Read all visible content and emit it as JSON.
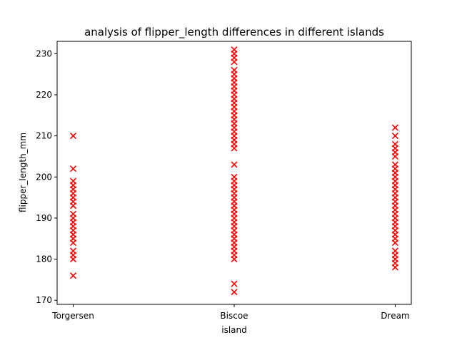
{
  "chart_data": {
    "type": "scatter",
    "title": "analysis of flipper_length differences in different islands",
    "xlabel": "island",
    "ylabel": "flipper_length_mm",
    "categories": [
      "Torgersen",
      "Biscoe",
      "Dream"
    ],
    "ylim": [
      169,
      233
    ],
    "yticks": [
      170,
      180,
      190,
      200,
      210,
      220,
      230
    ],
    "grid": false,
    "marker": "x",
    "marker_color": "#ff0000",
    "series": [
      {
        "values": {
          "Torgersen": [
            176,
            180,
            181,
            182,
            184,
            185,
            186,
            187,
            188,
            189,
            190,
            191,
            193,
            194,
            195,
            196,
            197,
            198,
            199,
            202,
            210
          ],
          "Biscoe": [
            172,
            174,
            180,
            181,
            182,
            183,
            184,
            185,
            186,
            187,
            188,
            189,
            190,
            191,
            192,
            193,
            194,
            195,
            196,
            197,
            198,
            199,
            200,
            203,
            207,
            208,
            209,
            210,
            211,
            212,
            213,
            214,
            215,
            216,
            217,
            218,
            219,
            220,
            221,
            222,
            223,
            224,
            225,
            226,
            228,
            229,
            230,
            231
          ],
          "Dream": [
            178,
            179,
            180,
            181,
            182,
            184,
            185,
            186,
            187,
            188,
            189,
            190,
            191,
            192,
            193,
            194,
            195,
            196,
            197,
            198,
            199,
            200,
            201,
            202,
            203,
            205,
            206,
            207,
            208,
            210,
            212
          ]
        }
      }
    ]
  }
}
